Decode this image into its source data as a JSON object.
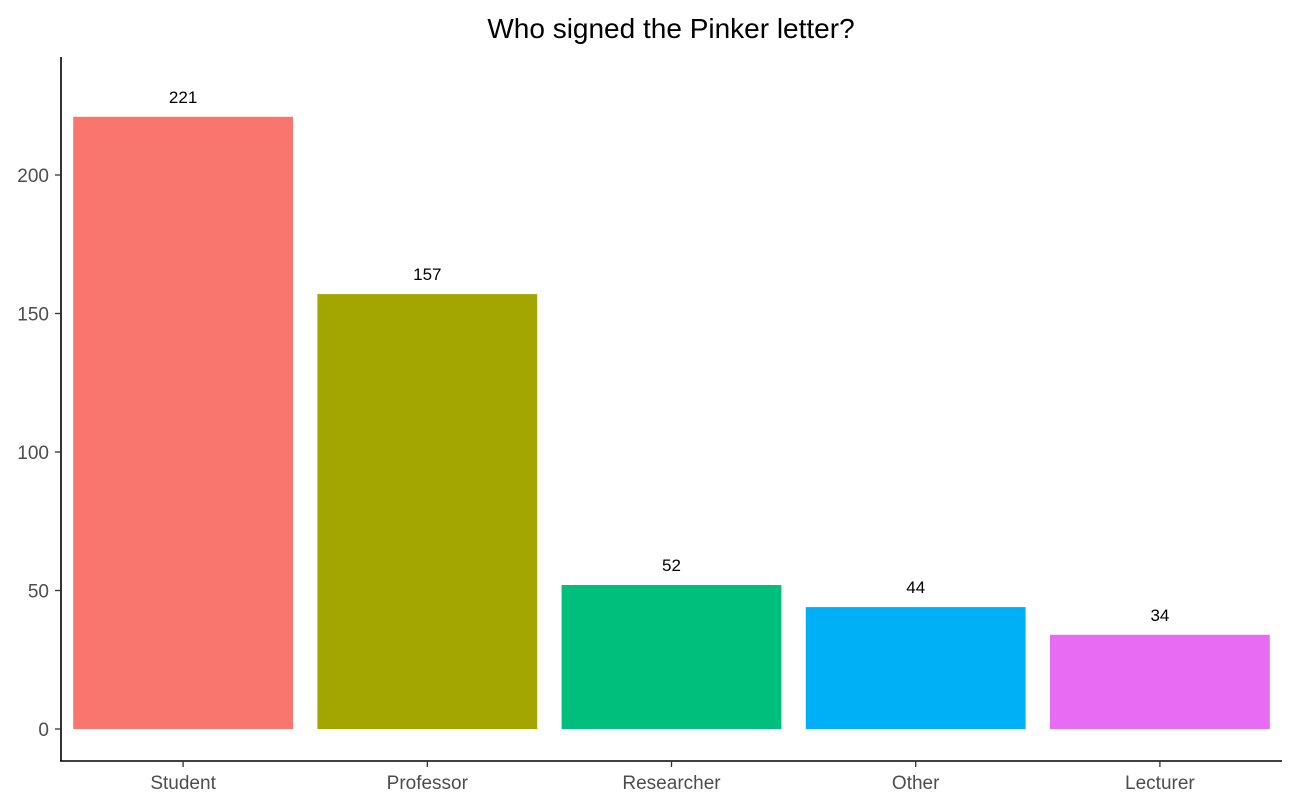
{
  "chart_data": {
    "type": "bar",
    "title": "Who signed the Pinker letter?",
    "xlabel": "",
    "ylabel": "",
    "categories": [
      "Student",
      "Professor",
      "Researcher",
      "Other",
      "Lecturer"
    ],
    "values": [
      221,
      157,
      52,
      44,
      34
    ],
    "data_labels": [
      "221",
      "157",
      "52",
      "44",
      "34"
    ],
    "colors": [
      "#F8766D",
      "#A3A500",
      "#00BF7D",
      "#00B0F6",
      "#E76BF3"
    ],
    "ylim": [
      0,
      232
    ],
    "yticks": [
      0,
      50,
      100,
      150,
      200
    ],
    "grid": false,
    "legend": "none"
  }
}
